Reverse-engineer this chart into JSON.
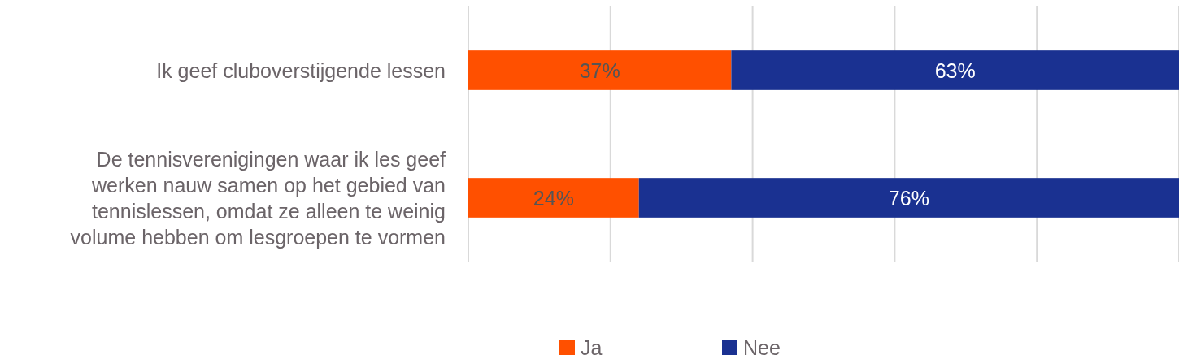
{
  "chart_data": {
    "type": "bar",
    "orientation": "horizontal",
    "stacked": true,
    "categories": [
      "Ik geef cluboverstijgende lessen",
      "De tennisverenigingen waar ik les geef werken nauw samen op het gebied van tennislessen, omdat ze alleen te weinig volume hebben om lesgroepen te vormen"
    ],
    "series": [
      {
        "name": "Ja",
        "color": "#ff5000",
        "values": [
          37,
          24
        ],
        "value_labels": [
          "37%",
          "24%"
        ]
      },
      {
        "name": "Nee",
        "color": "#1a3191",
        "values": [
          63,
          76
        ],
        "value_labels": [
          "63%",
          "76%"
        ]
      }
    ],
    "xlim": [
      0,
      100
    ],
    "xticks": [
      {
        "value": 0,
        "label": null
      },
      {
        "value": 20,
        "label": null
      },
      {
        "value": 40,
        "label": null
      },
      {
        "value": 60,
        "label": null
      },
      {
        "value": 80,
        "label": null
      },
      {
        "value": 100,
        "label": null
      }
    ],
    "grid": "x",
    "legend": "bottom"
  }
}
